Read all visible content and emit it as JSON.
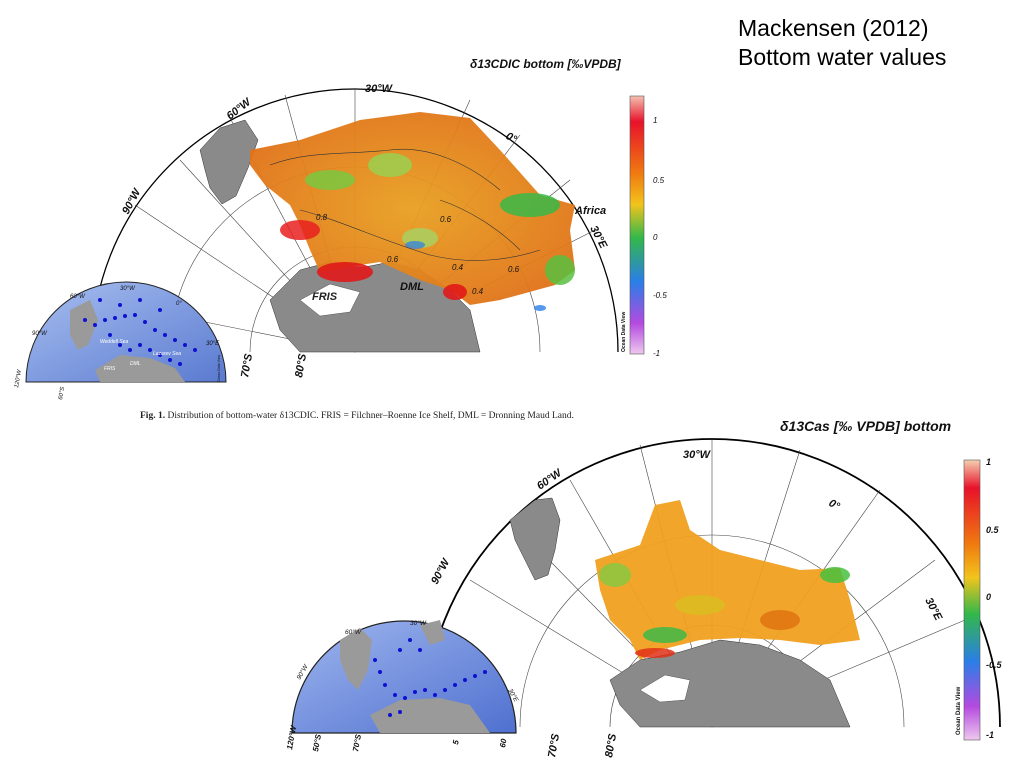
{
  "slide": {
    "title_line1": "Mackensen (2012)",
    "title_line2": "Bottom water values"
  },
  "figure1": {
    "map_title": "δ13CDIC bottom [‰VPDB]",
    "lon_labels": [
      "30°W",
      "60°W",
      "90°W",
      "0°",
      "30°E"
    ],
    "lat_labels": [
      "70°S",
      "80°S"
    ],
    "region_labels": [
      "Africa",
      "FRIS",
      "DML"
    ],
    "contour_labels": [
      "0.8",
      "0.6",
      "0.6",
      "0.4",
      "0.6",
      "0.4"
    ],
    "colorbar": {
      "ticks": [
        "1",
        "0.5",
        "0",
        "-0.5",
        "-1"
      ],
      "credit": "Ocean Data View",
      "colors": [
        "#f5c0b0",
        "#e8122a",
        "#f07a10",
        "#f2c41c",
        "#32b84a",
        "#2a7ee8",
        "#b44ae0",
        "#eec8ee"
      ]
    },
    "inset": {
      "lon_labels": [
        "30°W",
        "60°W",
        "90°W",
        "0°",
        "30°E"
      ],
      "lat_labels": [
        "120°W",
        "60°S"
      ],
      "region_labels": [
        "Weddell Sea",
        "Lazarev Sea",
        "FRIS",
        "DML"
      ],
      "credit": "Ocean Data View"
    },
    "caption_prefix": "Fig. 1.",
    "caption_text": "Distribution of bottom-water δ13CDIC. FRIS = Filchner–Roenne Ice Shelf, DML = Dronning Maud Land."
  },
  "figure2": {
    "map_title": "δ13Cas [‰ VPDB] bottom",
    "lon_labels": [
      "30°W",
      "60°W",
      "90°W",
      "0°",
      "30°E"
    ],
    "lat_labels": [
      "70°S",
      "80°S"
    ],
    "colorbar": {
      "ticks": [
        "1",
        "0.5",
        "0",
        "-0.5",
        "-1"
      ],
      "credit": "Ocean Data View"
    },
    "inset": {
      "lon_labels": [
        "30°W",
        "60°W",
        "90°W",
        "30°E",
        "120°W",
        "50°S",
        "70°S",
        "5",
        "60"
      ]
    }
  },
  "colors": {
    "ocean_inset": "#6f8fd8",
    "land": "#8a8a8a",
    "station_dots": "#1010d0"
  }
}
